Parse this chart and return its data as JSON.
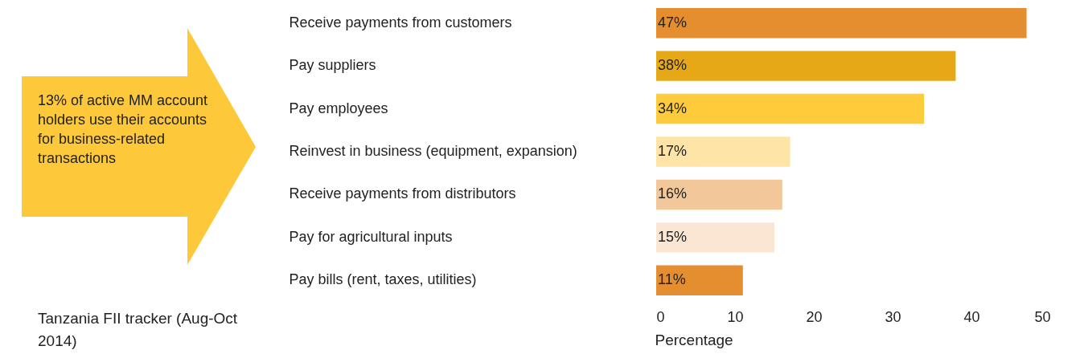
{
  "chart_data": {
    "type": "bar",
    "orientation": "horizontal",
    "categories": [
      "Receive payments from customers",
      "Pay suppliers",
      "Pay employees",
      "Reinvest in business (equipment, expansion)",
      "Receive payments from distributors",
      "Pay for agricultural inputs",
      "Pay bills (rent, taxes, utilities)"
    ],
    "values": [
      47,
      38,
      34,
      17,
      16,
      15,
      11
    ],
    "value_labels": [
      "47%",
      "38%",
      "34%",
      "17%",
      "16%",
      "15%",
      "11%"
    ],
    "colors": [
      "#e58e2f",
      "#e6a817",
      "#fecb3a",
      "#fee4a6",
      "#f2c89a",
      "#fae6d2",
      "#e58e2f"
    ],
    "xlim": [
      0,
      50
    ],
    "xticks": [
      0,
      10,
      20,
      30,
      40,
      50
    ],
    "xlabel": "Percentage",
    "grid": false,
    "annotations": [
      "13% of active MM account holders use their accounts for business-related transactions",
      "Tanzania FII tracker (Aug-Oct 2014)"
    ]
  }
}
